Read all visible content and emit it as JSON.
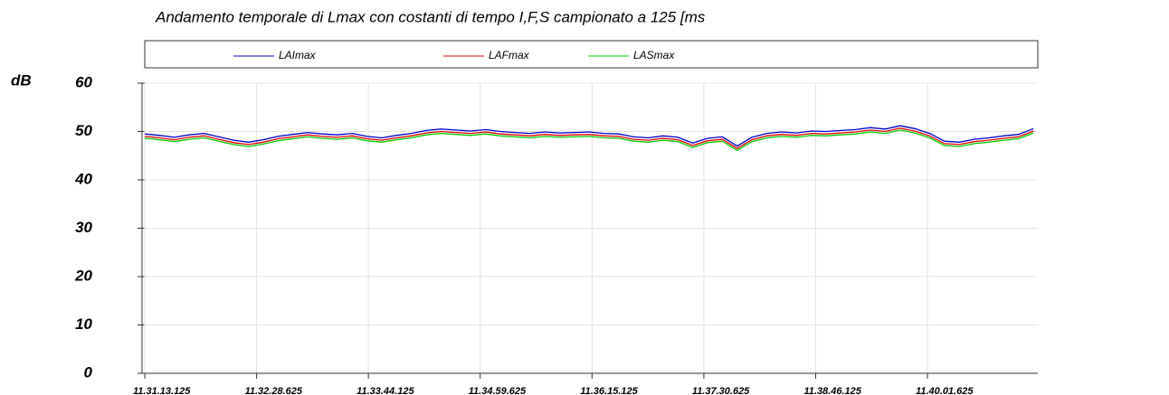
{
  "chart_data": {
    "type": "line",
    "title": "Andamento temporale di Lmax con costanti di tempo I,F,S campionato a 125 [ms",
    "ylabel": "dB",
    "x": [
      "11.31.13.125",
      "11.31.23.125",
      "11.31.33.125",
      "11.31.43.125",
      "11.31.53.125",
      "11.32.03.125",
      "11.32.13.125",
      "11.32.23.125",
      "11.32.33.125",
      "11.32.43.125",
      "11.32.53.125",
      "11.33.03.125",
      "11.33.13.125",
      "11.33.23.125",
      "11.33.33.125",
      "11.33.43.125",
      "11.33.53.125",
      "11.34.03.125",
      "11.34.13.125",
      "11.34.23.125",
      "11.34.33.125",
      "11.34.43.125",
      "11.34.53.125",
      "11.35.03.125",
      "11.35.13.125",
      "11.35.23.125",
      "11.35.33.125",
      "11.35.43.125",
      "11.35.53.125",
      "11.36.03.125",
      "11.36.13.125",
      "11.36.23.125",
      "11.36.33.125",
      "11.36.43.125",
      "11.36.53.125",
      "11.37.03.125",
      "11.37.13.125",
      "11.37.23.125",
      "11.37.33.125",
      "11.37.43.125",
      "11.37.53.125",
      "11.38.03.125",
      "11.38.13.125",
      "11.38.23.125",
      "11.38.33.125",
      "11.38.43.125",
      "11.38.53.125",
      "11.39.03.125",
      "11.39.13.125",
      "11.39.23.125",
      "11.39.33.125",
      "11.39.43.125",
      "11.39.53.125",
      "11.40.03.125",
      "11.40.13.125",
      "11.40.23.125",
      "11.40.33.125",
      "11.40.43.125",
      "11.40.53.125",
      "11.41.03.125",
      "11.41.13.125"
    ],
    "series": [
      {
        "name": "LAImax",
        "color": "#0000cc",
        "values": [
          49.5,
          49.2,
          48.8,
          49.3,
          49.6,
          48.9,
          48.2,
          47.8,
          48.3,
          49.0,
          49.4,
          49.8,
          49.5,
          49.3,
          49.6,
          49.0,
          48.7,
          49.2,
          49.6,
          50.2,
          50.5,
          50.3,
          50.1,
          50.4,
          50.0,
          49.8,
          49.6,
          49.9,
          49.7,
          49.8,
          49.9,
          49.6,
          49.5,
          48.9,
          48.7,
          49.1,
          48.8,
          47.6,
          48.6,
          48.9,
          47.0,
          48.8,
          49.6,
          49.9,
          49.7,
          50.1,
          50.0,
          50.2,
          50.4,
          50.8,
          50.5,
          51.2,
          50.6,
          49.6,
          48.0,
          47.8,
          48.4,
          48.7,
          49.1,
          49.4,
          50.6
        ]
      },
      {
        "name": "LAFmax",
        "color": "#e00000",
        "values": [
          49.0,
          48.7,
          48.3,
          48.8,
          49.1,
          48.4,
          47.7,
          47.3,
          47.8,
          48.5,
          48.9,
          49.3,
          49.0,
          48.8,
          49.1,
          48.5,
          48.2,
          48.7,
          49.1,
          49.7,
          50.0,
          49.8,
          49.6,
          49.9,
          49.5,
          49.3,
          49.1,
          49.4,
          49.2,
          49.3,
          49.4,
          49.1,
          49.0,
          48.4,
          48.2,
          48.6,
          48.3,
          47.1,
          48.1,
          48.4,
          46.5,
          48.3,
          49.1,
          49.4,
          49.2,
          49.6,
          49.5,
          49.7,
          49.9,
          50.3,
          50.0,
          50.7,
          50.1,
          49.1,
          47.5,
          47.3,
          47.9,
          48.2,
          48.6,
          48.9,
          50.1
        ]
      },
      {
        "name": "LASmax",
        "color": "#00cc00",
        "values": [
          48.6,
          48.3,
          47.9,
          48.4,
          48.7,
          48.0,
          47.3,
          46.9,
          47.4,
          48.1,
          48.5,
          48.9,
          48.6,
          48.4,
          48.7,
          48.1,
          47.8,
          48.3,
          48.7,
          49.3,
          49.6,
          49.4,
          49.2,
          49.5,
          49.1,
          48.9,
          48.7,
          49.0,
          48.8,
          48.9,
          49.0,
          48.7,
          48.6,
          48.0,
          47.8,
          48.2,
          47.9,
          46.7,
          47.7,
          48.0,
          46.1,
          47.9,
          48.7,
          49.0,
          48.8,
          49.2,
          49.1,
          49.3,
          49.5,
          49.9,
          49.6,
          50.3,
          49.7,
          48.7,
          47.1,
          46.9,
          47.5,
          47.8,
          48.2,
          48.5,
          49.7
        ]
      }
    ],
    "xlim": [
      "11.31.13.125",
      "11.41.16.125"
    ],
    "xticks": [
      "11.31.13.125",
      "11.32.28.625",
      "11.33.44.125",
      "11.34.59.625",
      "11.36.15.125",
      "11.37.30.625",
      "11.38.46.125",
      "11.40.01.625"
    ],
    "ylim": [
      0,
      60
    ],
    "yticks": [
      0,
      10,
      20,
      30,
      40,
      50,
      60
    ],
    "grid": true
  }
}
